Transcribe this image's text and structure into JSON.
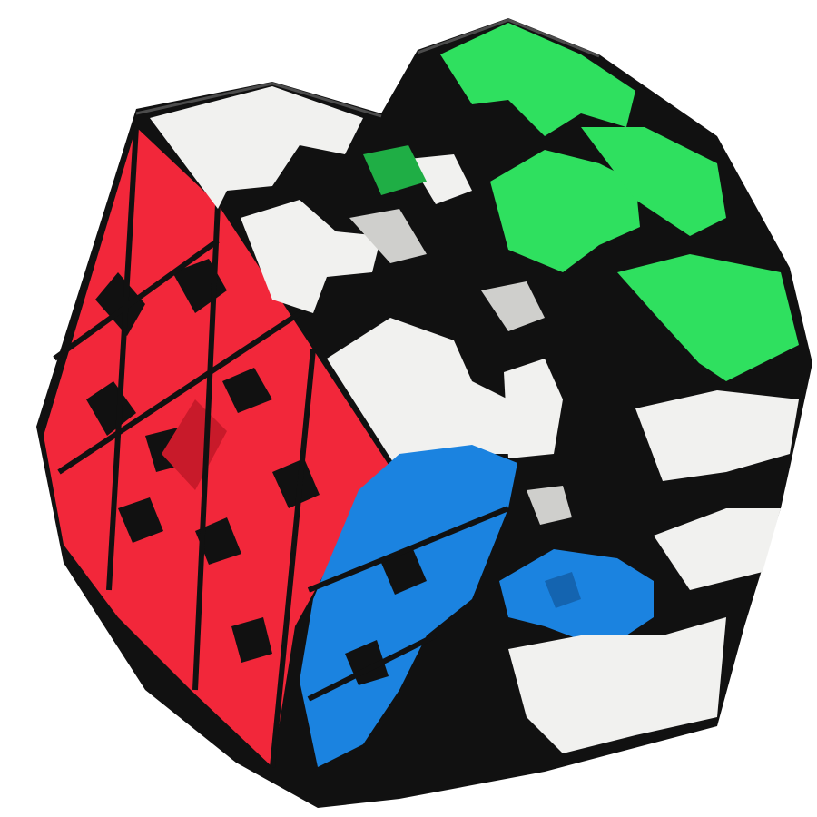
{
  "photo": {
    "subject": "gear-cube-puzzle",
    "background_color": "#ffffff",
    "colors": {
      "body": "#111111",
      "red": "#f2273a",
      "red_shade": "#c81a2a",
      "blue": "#1b83e0",
      "blue_shade": "#1464b0",
      "green": "#2fe05f",
      "green_shade": "#1fae45",
      "white": "#f1f1ef",
      "white_shade": "#cfcfcc"
    }
  }
}
